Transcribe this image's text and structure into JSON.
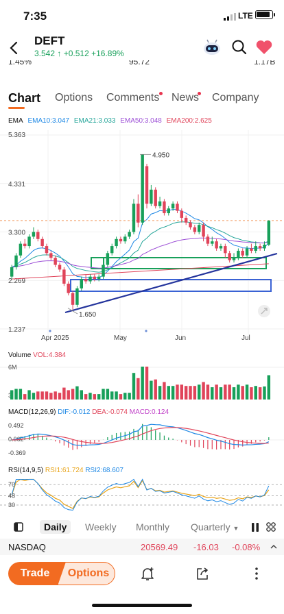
{
  "status": {
    "time": "7:35",
    "network": "LTE"
  },
  "header": {
    "ticker": "DEFT",
    "price": "3.542",
    "change": "+0.512",
    "change_pct": "+16.89%",
    "arrow": "↑",
    "stats": [
      "1.45%",
      "95.72",
      "1.17B"
    ]
  },
  "tabs": [
    {
      "label": "Chart",
      "active": true
    },
    {
      "label": "Options"
    },
    {
      "label": "Comments",
      "dot": true
    },
    {
      "label": "News",
      "dot": true
    },
    {
      "label": "Company"
    }
  ],
  "ema": {
    "title": "EMA",
    "items": [
      {
        "label": "EMA10:3.047",
        "color": "#1e88e5"
      },
      {
        "label": "EMA21:3.033",
        "color": "#26a69a"
      },
      {
        "label": "EMA50:3.048",
        "color": "#9c4fd6"
      },
      {
        "label": "EMA200:2.625",
        "color": "#e0445a"
      }
    ]
  },
  "chart_data": {
    "type": "candlestick",
    "y_ticks": [
      "5.363",
      "4.331",
      "3.300",
      "2.269",
      "1.237"
    ],
    "x_ticks": [
      "Apr 2025",
      "May",
      "Jun",
      "Jul"
    ],
    "annotations": {
      "high": "4.950",
      "low": "1.650"
    },
    "last_price": 3.542,
    "up_color": "#18a05a",
    "down_color": "#e0445a",
    "candles": [
      [
        2.35,
        2.55,
        2.3,
        2.6
      ],
      [
        2.55,
        2.8,
        2.5,
        2.85
      ],
      [
        2.8,
        3.05,
        2.75,
        3.1
      ],
      [
        3.05,
        3.0,
        2.95,
        3.15
      ],
      [
        3.0,
        3.2,
        2.95,
        3.25
      ],
      [
        3.2,
        3.3,
        3.15,
        3.4
      ],
      [
        3.3,
        3.15,
        3.1,
        3.35
      ],
      [
        3.15,
        3.0,
        2.95,
        3.2
      ],
      [
        3.0,
        2.85,
        2.8,
        3.05
      ],
      [
        2.85,
        2.75,
        2.7,
        2.9
      ],
      [
        2.75,
        2.6,
        2.55,
        2.8
      ],
      [
        2.6,
        2.5,
        2.45,
        2.65
      ],
      [
        2.5,
        2.2,
        2.15,
        2.55
      ],
      [
        2.2,
        2.0,
        1.95,
        2.25
      ],
      [
        2.0,
        1.75,
        1.65,
        2.05
      ],
      [
        1.75,
        2.1,
        1.7,
        2.15
      ],
      [
        2.1,
        2.3,
        2.05,
        2.35
      ],
      [
        2.3,
        2.25,
        2.2,
        2.4
      ],
      [
        2.25,
        2.35,
        2.2,
        2.4
      ],
      [
        2.35,
        2.3,
        2.25,
        2.4
      ],
      [
        2.3,
        2.35,
        2.25,
        2.4
      ],
      [
        2.35,
        2.6,
        2.3,
        2.65
      ],
      [
        2.6,
        2.85,
        2.55,
        2.9
      ],
      [
        2.85,
        3.0,
        2.8,
        3.05
      ],
      [
        3.0,
        3.15,
        2.95,
        3.2
      ],
      [
        3.15,
        3.1,
        3.05,
        3.2
      ],
      [
        3.1,
        3.2,
        3.05,
        3.25
      ],
      [
        3.2,
        3.3,
        3.15,
        3.35
      ],
      [
        3.3,
        3.9,
        3.25,
        4.0
      ],
      [
        3.9,
        3.5,
        3.4,
        4.1
      ],
      [
        3.5,
        4.95,
        3.45,
        4.95
      ],
      [
        4.7,
        3.9,
        3.8,
        4.75
      ],
      [
        3.9,
        4.2,
        3.85,
        4.3
      ],
      [
        4.2,
        3.85,
        3.8,
        4.25
      ],
      [
        3.85,
        3.95,
        3.8,
        4.05
      ],
      [
        3.95,
        3.7,
        3.65,
        4.0
      ],
      [
        3.7,
        3.8,
        3.65,
        3.85
      ],
      [
        3.8,
        3.9,
        3.75,
        3.95
      ],
      [
        3.9,
        3.75,
        3.7,
        3.95
      ],
      [
        3.75,
        3.6,
        3.5,
        3.8
      ],
      [
        3.6,
        3.5,
        3.45,
        3.65
      ],
      [
        3.5,
        3.4,
        3.35,
        3.55
      ],
      [
        3.4,
        3.3,
        3.25,
        3.45
      ],
      [
        3.3,
        3.45,
        3.25,
        3.5
      ],
      [
        3.45,
        3.2,
        3.1,
        3.5
      ],
      [
        3.2,
        3.05,
        3.0,
        3.25
      ],
      [
        3.05,
        3.1,
        3.0,
        3.2
      ],
      [
        3.1,
        2.95,
        2.9,
        3.15
      ],
      [
        2.95,
        3.0,
        2.9,
        3.05
      ],
      [
        3.0,
        2.85,
        2.75,
        3.05
      ],
      [
        2.85,
        2.7,
        2.65,
        2.9
      ],
      [
        2.7,
        2.75,
        2.65,
        2.85
      ],
      [
        2.75,
        2.9,
        2.7,
        2.95
      ],
      [
        2.9,
        2.8,
        2.75,
        2.95
      ],
      [
        2.8,
        2.95,
        2.75,
        3.0
      ],
      [
        2.95,
        2.9,
        2.85,
        3.05
      ],
      [
        2.9,
        3.0,
        2.85,
        3.1
      ],
      [
        3.0,
        2.95,
        2.9,
        3.05
      ],
      [
        2.95,
        3.03,
        2.9,
        3.1
      ],
      [
        3.03,
        3.542,
        3.0,
        3.55
      ]
    ],
    "volume": {
      "label": "VOL:4.384",
      "ticks": [
        "6M",
        "3"
      ]
    },
    "macd": {
      "title": "MACD(12,26,9)",
      "dif": "DIF:-0.012",
      "dea": "DEA:-0.074",
      "macd": "MACD:0.124",
      "ticks": [
        "0.492",
        "0.062",
        "-0.369"
      ]
    },
    "rsi": {
      "title": "RSI(14,9,5)",
      "rsi1": "RSI1:61.724",
      "rsi2": "RSI2:68.607",
      "ticks": [
        "70",
        "48",
        "30"
      ]
    }
  },
  "periods": [
    "Daily",
    "Weekly",
    "Monthly",
    "Quarterly"
  ],
  "index": {
    "name": "NASDAQ",
    "value": "20569.49",
    "change": "-16.03",
    "change_pct": "-0.08%"
  },
  "bottom": {
    "trade": "Trade",
    "options": "Options"
  }
}
